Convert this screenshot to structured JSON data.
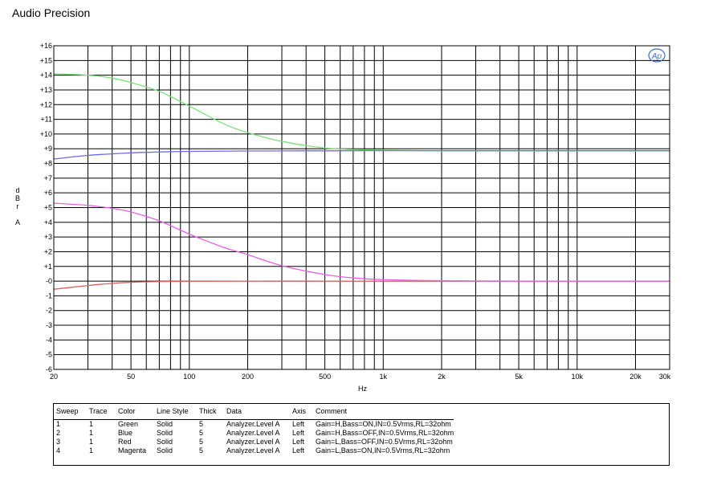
{
  "header": {
    "title": "Audio Precision"
  },
  "logo": {
    "text": "Ap",
    "color": "#3a6fc4"
  },
  "chart_data": {
    "type": "line",
    "x_scale": "log",
    "xlim": [
      20,
      30000
    ],
    "ylim": [
      -6,
      16
    ],
    "xlabel": "Hz",
    "ylabel_chars": [
      "d",
      "B",
      "r",
      "",
      "A"
    ],
    "grid": true,
    "y_ticks": [
      {
        "v": 16,
        "label": "+16"
      },
      {
        "v": 15,
        "label": "+15"
      },
      {
        "v": 14,
        "label": "+14"
      },
      {
        "v": 13,
        "label": "+13"
      },
      {
        "v": 12,
        "label": "+12"
      },
      {
        "v": 11,
        "label": "+11"
      },
      {
        "v": 10,
        "label": "+10"
      },
      {
        "v": 9,
        "label": "+9"
      },
      {
        "v": 8,
        "label": "+8"
      },
      {
        "v": 7,
        "label": "+7"
      },
      {
        "v": 6,
        "label": "+6"
      },
      {
        "v": 5,
        "label": "+5"
      },
      {
        "v": 4,
        "label": "+4"
      },
      {
        "v": 3,
        "label": "+3"
      },
      {
        "v": 2,
        "label": "+2"
      },
      {
        "v": 1,
        "label": "+1"
      },
      {
        "v": 0,
        "label": "-0"
      },
      {
        "v": -1,
        "label": "-1"
      },
      {
        "v": -2,
        "label": "-2"
      },
      {
        "v": -3,
        "label": "-3"
      },
      {
        "v": -4,
        "label": "-4"
      },
      {
        "v": -5,
        "label": "-5"
      },
      {
        "v": -6,
        "label": "-6"
      }
    ],
    "x_ticks": [
      {
        "v": 20,
        "label": "20"
      },
      {
        "v": 50,
        "label": "50"
      },
      {
        "v": 100,
        "label": "100"
      },
      {
        "v": 200,
        "label": "200"
      },
      {
        "v": 500,
        "label": "500"
      },
      {
        "v": 1000,
        "label": "1k"
      },
      {
        "v": 2000,
        "label": "2k"
      },
      {
        "v": 5000,
        "label": "5k"
      },
      {
        "v": 10000,
        "label": "10k"
      },
      {
        "v": 20000,
        "label": "20k"
      },
      {
        "v": 30000,
        "label": "30k"
      }
    ],
    "x_gridlines": [
      20,
      30,
      40,
      50,
      60,
      70,
      80,
      90,
      100,
      200,
      300,
      400,
      500,
      600,
      700,
      800,
      900,
      1000,
      2000,
      3000,
      4000,
      5000,
      6000,
      7000,
      8000,
      9000,
      10000,
      20000,
      30000
    ],
    "series": [
      {
        "color": "#7de07d",
        "x": [
          20,
          30,
          40,
          50,
          70,
          100,
          150,
          200,
          300,
          500,
          700,
          1000,
          2000,
          5000,
          10000,
          30000
        ],
        "y": [
          14.1,
          14.0,
          13.8,
          13.5,
          12.9,
          11.9,
          10.7,
          10.1,
          9.5,
          9.05,
          8.95,
          8.9,
          8.85,
          8.85,
          8.85,
          8.85
        ]
      },
      {
        "color": "#6a6af0",
        "x": [
          20,
          30,
          50,
          70,
          100,
          200,
          500,
          1000,
          2000,
          5000,
          10000,
          30000
        ],
        "y": [
          8.3,
          8.55,
          8.72,
          8.78,
          8.82,
          8.85,
          8.86,
          8.87,
          8.87,
          8.87,
          8.87,
          8.87
        ]
      },
      {
        "color": "#e06060",
        "x": [
          20,
          30,
          40,
          50,
          70,
          100,
          200,
          500,
          1000,
          2000,
          5000,
          10000,
          30000
        ],
        "y": [
          -0.55,
          -0.3,
          -0.15,
          -0.08,
          -0.03,
          -0.01,
          0.0,
          0.0,
          0.0,
          0.0,
          0.0,
          0.0,
          0.0
        ]
      },
      {
        "color": "#e85ee8",
        "x": [
          20,
          30,
          40,
          50,
          70,
          100,
          150,
          200,
          300,
          500,
          700,
          1000,
          2000,
          5000,
          10000,
          30000
        ],
        "y": [
          5.3,
          5.15,
          4.95,
          4.7,
          4.1,
          3.2,
          2.3,
          1.8,
          1.05,
          0.45,
          0.22,
          0.1,
          0.03,
          0.0,
          0.0,
          0.0
        ]
      }
    ]
  },
  "legend": {
    "headers": [
      "Sweep",
      "Trace",
      "Color",
      "Line Style",
      "Thick",
      "Data",
      "Axis",
      "Comment"
    ],
    "rows": [
      [
        "1",
        "1",
        "Green",
        "Solid",
        "5",
        "Analyzer.Level A",
        "Left",
        "Gain=H,Bass=ON,IN=0.5Vrms,RL=32ohm"
      ],
      [
        "2",
        "1",
        "Blue",
        "Solid",
        "5",
        "Analyzer.Level A",
        "Left",
        "Gain=H,Bass=OFF,IN=0.5Vrms,RL=32ohm"
      ],
      [
        "3",
        "1",
        "Red",
        "Solid",
        "5",
        "Analyzer.Level A",
        "Left",
        "Gain=L,Bass=OFF,IN=0.5Vrms,RL=32ohm"
      ],
      [
        "4",
        "1",
        "Magenta",
        "Solid",
        "5",
        "Analyzer.Level A",
        "Left",
        "Gain=L,Bass=ON,IN=0.5Vrms,RL=32ohm"
      ]
    ]
  }
}
